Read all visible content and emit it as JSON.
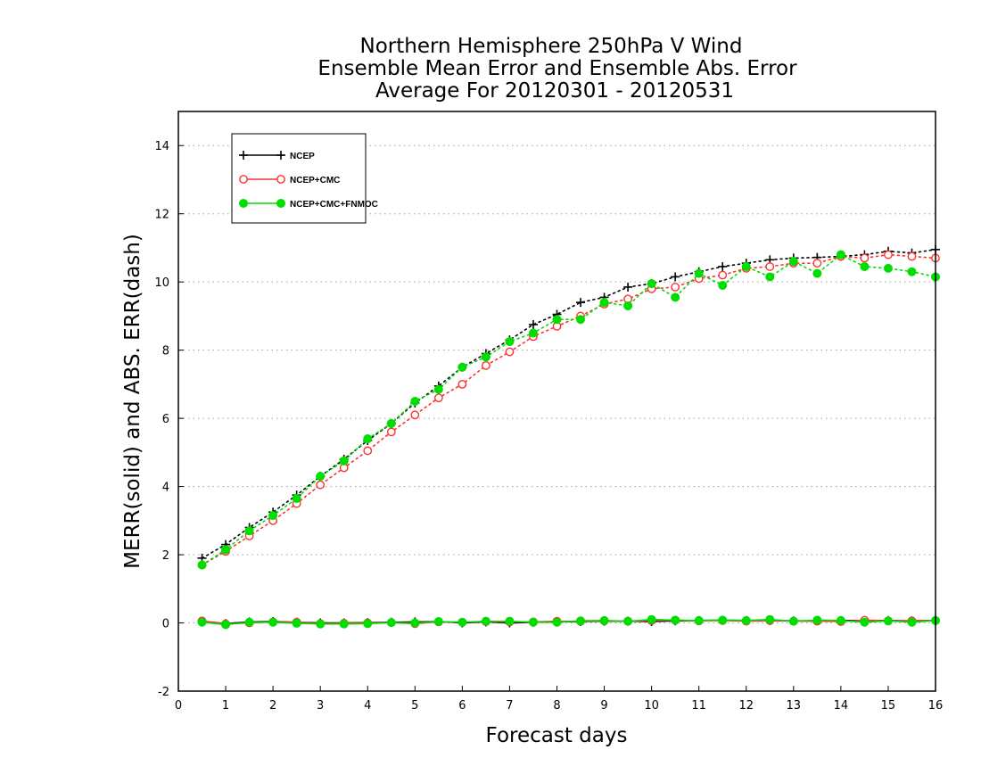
{
  "chart_data": {
    "type": "line",
    "title_lines": [
      "Northern Hemisphere 250hPa V Wind",
      "Ensemble Mean Error and Ensemble Abs. Error",
      "Average For 20120301 - 20120531"
    ],
    "xlabel": "Forecast days",
    "ylabel": "MERR(solid) and ABS. ERR(dash)",
    "xlim": [
      0,
      16
    ],
    "ylim": [
      -2,
      15
    ],
    "xticks": [
      "0",
      "1",
      "2",
      "3",
      "4",
      "5",
      "6",
      "7",
      "8",
      "9",
      "10",
      "11",
      "12",
      "13",
      "14",
      "15",
      "16"
    ],
    "yticks": [
      "-2",
      "0",
      "2",
      "4",
      "6",
      "8",
      "10",
      "12",
      "14"
    ],
    "grid": "horizontal dotted",
    "legend_position": "top-left",
    "x": [
      0.5,
      1,
      1.5,
      2,
      2.5,
      3,
      3.5,
      4,
      4.5,
      5,
      5.5,
      6,
      6.5,
      7,
      7.5,
      8,
      8.5,
      9,
      9.5,
      10,
      10.5,
      11,
      11.5,
      12,
      12.5,
      13,
      13.5,
      14,
      14.5,
      15,
      15.5,
      16
    ],
    "series": [
      {
        "name": "NCEP",
        "color": "#000000",
        "marker": "plus",
        "abs_err": [
          1.9,
          2.3,
          2.8,
          3.25,
          3.75,
          4.3,
          4.8,
          5.35,
          5.85,
          6.45,
          6.95,
          7.5,
          7.9,
          8.3,
          8.75,
          9.05,
          9.4,
          9.55,
          9.85,
          9.95,
          10.15,
          10.3,
          10.45,
          10.55,
          10.65,
          10.7,
          10.72,
          10.75,
          10.8,
          10.9,
          10.85,
          10.95
        ],
        "mean_err": [
          0.05,
          -0.02,
          0.03,
          0.04,
          0.02,
          0.0,
          0.0,
          0.01,
          0.02,
          0.03,
          0.04,
          0.0,
          0.03,
          0.0,
          0.02,
          0.03,
          0.04,
          0.05,
          0.05,
          0.04,
          0.06,
          0.07,
          0.08,
          0.07,
          0.07,
          0.06,
          0.06,
          0.07,
          0.07,
          0.07,
          0.06,
          0.07
        ]
      },
      {
        "name": "NCEP+CMC",
        "color": "#ff3030",
        "marker": "open-circle",
        "abs_err": [
          1.7,
          2.1,
          2.55,
          3.0,
          3.5,
          4.05,
          4.55,
          5.05,
          5.6,
          6.1,
          6.6,
          7.0,
          7.55,
          7.95,
          8.4,
          8.7,
          9.0,
          9.35,
          9.5,
          9.8,
          9.85,
          10.1,
          10.2,
          10.4,
          10.45,
          10.55,
          10.55,
          10.75,
          10.7,
          10.8,
          10.75,
          10.7
        ],
        "mean_err": [
          0.06,
          -0.03,
          0.0,
          0.03,
          0.02,
          -0.02,
          -0.01,
          0.0,
          0.01,
          -0.02,
          0.03,
          0.02,
          0.04,
          0.03,
          0.03,
          0.05,
          0.05,
          0.06,
          0.05,
          0.07,
          0.08,
          0.06,
          0.07,
          0.05,
          0.07,
          0.05,
          0.05,
          0.04,
          0.08,
          0.06,
          0.06,
          0.07
        ]
      },
      {
        "name": "NCEP+CMC+FNMOC",
        "color": "#00dd00",
        "marker": "filled-circle",
        "abs_err": [
          1.7,
          2.15,
          2.7,
          3.15,
          3.65,
          4.3,
          4.75,
          5.4,
          5.85,
          6.5,
          6.85,
          7.5,
          7.8,
          8.25,
          8.5,
          8.9,
          8.9,
          9.4,
          9.3,
          9.95,
          9.55,
          10.25,
          9.9,
          10.45,
          10.15,
          10.6,
          10.25,
          10.8,
          10.45,
          10.4,
          10.3,
          10.15
        ],
        "mean_err": [
          0.02,
          -0.05,
          0.02,
          0.02,
          -0.01,
          -0.03,
          -0.03,
          -0.02,
          0.01,
          0.0,
          0.04,
          0.02,
          0.05,
          0.05,
          0.02,
          0.02,
          0.06,
          0.07,
          0.05,
          0.1,
          0.08,
          0.07,
          0.08,
          0.07,
          0.1,
          0.05,
          0.08,
          0.07,
          0.02,
          0.06,
          0.02,
          0.07
        ]
      }
    ]
  }
}
